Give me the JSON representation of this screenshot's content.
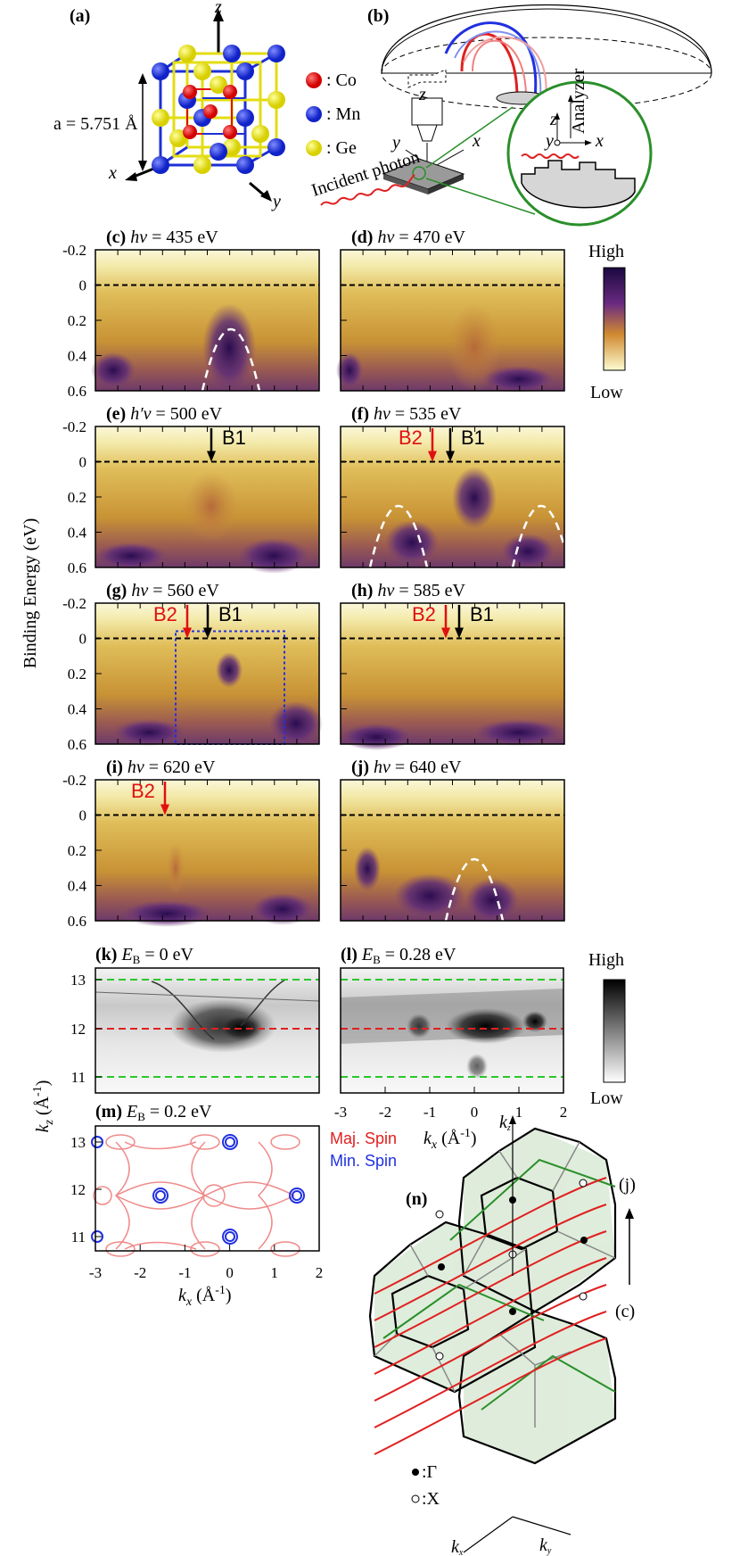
{
  "figure": {
    "panel_a": {
      "label": "(a)",
      "lattice_constant": "a = 5.751 Å",
      "legend": [
        {
          "name": ": Co",
          "color": "#e01010"
        },
        {
          "name": ": Mn",
          "color": "#1c2fd6"
        },
        {
          "name": ": Ge",
          "color": "#e3dd12"
        }
      ],
      "axes": {
        "x": "x",
        "y": "y",
        "z": "z"
      }
    },
    "panel_b": {
      "label": "(b)",
      "axes": {
        "x": "x",
        "y": "y",
        "z": "z"
      },
      "incident": "Incident photon",
      "analyzer": "Analyzer"
    },
    "spectra": {
      "ylabel": "Binding Energy (eV)",
      "yticks": [
        "-0.2",
        "0",
        "0.2",
        "0.4",
        "0.6"
      ],
      "colorbar": {
        "high": "High",
        "low": "Low"
      },
      "panels": [
        {
          "id": "c",
          "label": "(c)",
          "var": "hν",
          "value": "= 435 eV"
        },
        {
          "id": "d",
          "label": "(d)",
          "var": "hν",
          "value": "= 470 eV"
        },
        {
          "id": "e",
          "label": "(e)",
          "var": "h′ν",
          "value": "= 500 eV"
        },
        {
          "id": "f",
          "label": "(f)",
          "var": "hν",
          "value": "= 535 eV"
        },
        {
          "id": "g",
          "label": "(g)",
          "var": "hν",
          "value": "= 560 eV"
        },
        {
          "id": "h",
          "label": "(h)",
          "var": "hν",
          "value": "= 585 eV"
        },
        {
          "id": "i",
          "label": "(i)",
          "var": "hν",
          "value": "= 620 eV"
        },
        {
          "id": "j",
          "label": "(j)",
          "var": "hν",
          "value": "= 640 eV"
        }
      ],
      "markers": {
        "b1": "B1",
        "b2": "B2"
      }
    },
    "kmaps": {
      "k_label": "(k)",
      "k_value": "= 0 eV",
      "l_label": "(l)",
      "l_value": "= 0.28 eV",
      "m_label": "(m)",
      "m_value": "= 0.2 eV",
      "eb_var": "E",
      "eb_sub": "B",
      "ylabel": "k",
      "ylabel_sub": "z",
      "ylabel_unit": "(Å",
      "ylabel_exp": "-1",
      "ylabel_close": ")",
      "yticks": [
        "13",
        "12",
        "11"
      ],
      "xticks": [
        "-3",
        "-2",
        "-1",
        "0",
        "1",
        "2"
      ],
      "xlabel": "k",
      "xlabel_sub": "x",
      "xlabel_unit": "(Å",
      "xlabel_exp": "-1",
      "xlabel_close": ")",
      "colorbar": {
        "high": "High",
        "low": "Low"
      },
      "maj_spin": "Maj. Spin",
      "min_spin": "Min. Spin"
    },
    "panel_n": {
      "label": "(n)",
      "j_label": "(j)",
      "c_label": "(c)",
      "gamma": ":Γ",
      "x_point": ":X",
      "kz": "k",
      "kz_sub": "z",
      "kx": "k",
      "kx_sub": "x",
      "ky": "k",
      "ky_sub": "y"
    }
  }
}
